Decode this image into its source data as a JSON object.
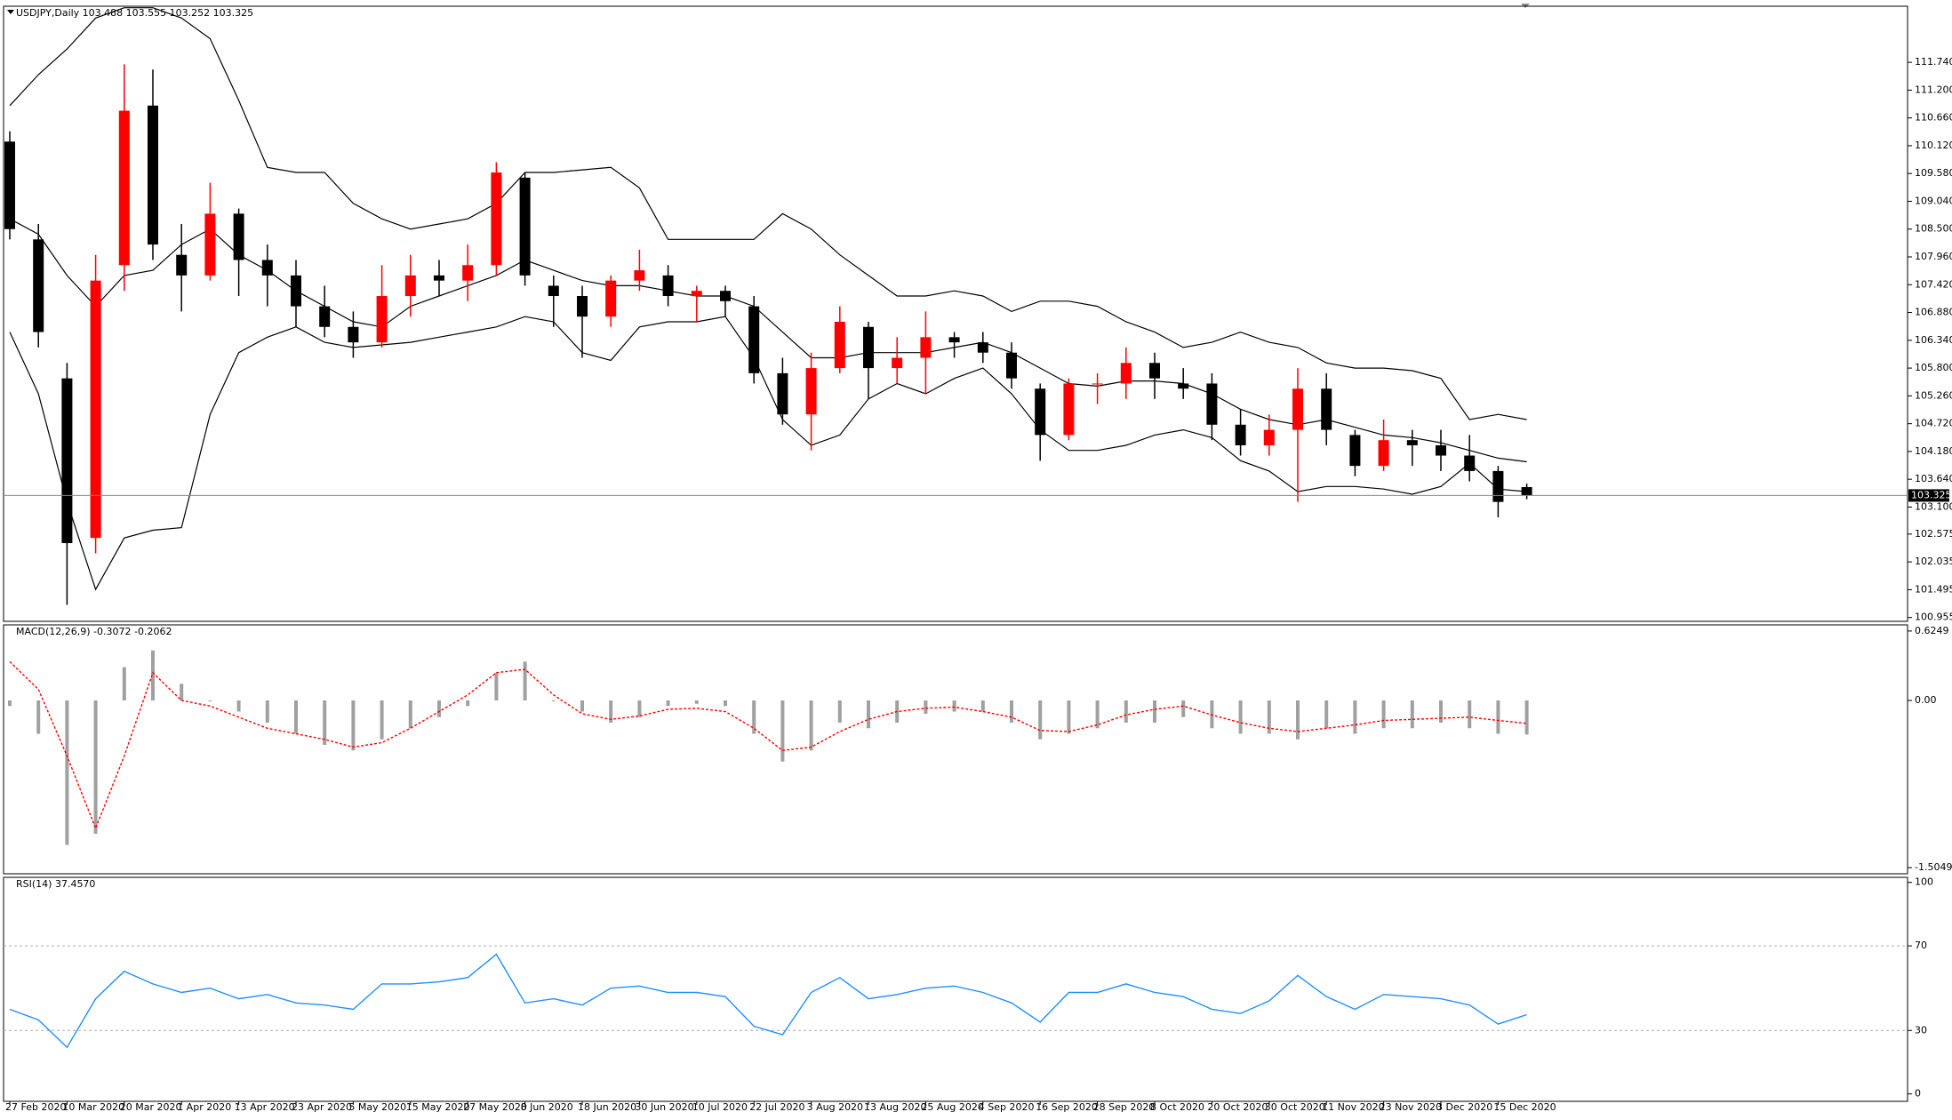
{
  "chart_data": [
    {
      "type": "candlestick",
      "title": "USDJPY,Daily  103.488 103.555 103.252 103.325",
      "up_color": "#ff0000",
      "down_color": "#000000",
      "band_color": "#000000",
      "last_price": 103.325,
      "categories": [
        "27 Feb 2020",
        null,
        "10 Mar 2020",
        null,
        "20 Mar 2020",
        null,
        "1 Apr 2020",
        null,
        "13 Apr 2020",
        null,
        "23 Apr 2020",
        null,
        "5 May 2020",
        null,
        "15 May 2020",
        null,
        "27 May 2020",
        null,
        "8 Jun 2020",
        null,
        "18 Jun 2020",
        null,
        "30 Jun 2020",
        null,
        "10 Jul 2020",
        null,
        "22 Jul 2020",
        null,
        "3 Aug 2020",
        null,
        "13 Aug 2020",
        null,
        "25 Aug 2020",
        null,
        "4 Sep 2020",
        null,
        "16 Sep 2020",
        null,
        "28 Sep 2020",
        null,
        "8 Oct 2020",
        null,
        "20 Oct 2020",
        null,
        "30 Oct 2020",
        null,
        "11 Nov 2020",
        null,
        "23 Nov 2020",
        null,
        "3 Dec 2020",
        null,
        "15 Dec 2020",
        null
      ],
      "open": [
        110.2,
        108.3,
        105.6,
        102.5,
        107.8,
        110.9,
        108.0,
        107.6,
        108.8,
        107.9,
        107.6,
        107.0,
        106.6,
        106.3,
        107.2,
        107.6,
        107.5,
        107.8,
        109.5,
        107.4,
        107.2,
        106.8,
        107.5,
        107.6,
        107.2,
        107.3,
        107.0,
        105.7,
        104.9,
        105.8,
        106.6,
        105.8,
        106.0,
        106.4,
        106.3,
        106.1,
        105.4,
        104.5,
        105.5,
        105.5,
        105.9,
        105.5,
        105.5,
        104.7,
        104.3,
        104.6,
        105.4,
        104.5,
        103.9,
        104.4,
        104.3,
        104.1,
        103.8,
        103.488
      ],
      "high": [
        110.4,
        108.6,
        105.9,
        108.0,
        111.7,
        111.6,
        108.6,
        109.4,
        108.9,
        108.2,
        107.9,
        107.4,
        106.9,
        107.8,
        108.0,
        107.9,
        108.2,
        109.8,
        109.6,
        107.6,
        107.4,
        107.6,
        108.1,
        107.8,
        107.4,
        107.4,
        107.2,
        106.0,
        106.1,
        107.0,
        106.7,
        106.4,
        106.9,
        106.5,
        106.5,
        106.3,
        105.5,
        105.6,
        105.7,
        106.2,
        106.1,
        105.8,
        105.7,
        105.0,
        104.9,
        105.8,
        105.7,
        104.6,
        104.8,
        104.6,
        104.6,
        104.5,
        103.9,
        103.555
      ],
      "low": [
        108.3,
        106.2,
        101.2,
        102.2,
        107.3,
        107.9,
        106.9,
        107.5,
        107.2,
        107.0,
        106.6,
        106.4,
        106.0,
        106.2,
        106.8,
        107.2,
        107.1,
        107.6,
        107.4,
        106.6,
        106.0,
        106.6,
        107.3,
        107.0,
        106.7,
        106.8,
        105.5,
        104.7,
        104.2,
        105.7,
        105.2,
        105.5,
        105.3,
        106.0,
        105.9,
        105.4,
        104.0,
        104.4,
        105.1,
        105.2,
        105.2,
        105.2,
        104.4,
        104.1,
        104.1,
        103.2,
        104.3,
        103.7,
        103.8,
        103.9,
        103.8,
        103.6,
        102.9,
        103.252
      ],
      "close": [
        108.5,
        106.5,
        102.4,
        107.5,
        110.8,
        108.2,
        107.6,
        108.8,
        107.9,
        107.6,
        107.0,
        106.6,
        106.3,
        107.2,
        107.6,
        107.5,
        107.8,
        109.6,
        107.6,
        107.2,
        106.8,
        107.5,
        107.7,
        107.2,
        107.3,
        107.1,
        105.7,
        104.9,
        105.8,
        106.7,
        105.8,
        106.0,
        106.4,
        106.3,
        106.1,
        105.6,
        104.5,
        105.5,
        105.5,
        105.9,
        105.6,
        105.4,
        104.7,
        104.3,
        104.6,
        105.4,
        104.6,
        103.9,
        104.4,
        104.3,
        104.1,
        103.8,
        103.2,
        103.325
      ],
      "bands": {
        "upper": [
          110.9,
          111.5,
          112.0,
          112.6,
          112.8,
          112.8,
          112.6,
          112.2,
          111.0,
          109.7,
          109.6,
          109.6,
          109.0,
          108.7,
          108.5,
          108.6,
          108.7,
          109.0,
          109.6,
          109.6,
          109.65,
          109.7,
          109.3,
          108.3,
          108.3,
          108.3,
          108.3,
          108.8,
          108.5,
          108.0,
          107.6,
          107.2,
          107.2,
          107.3,
          107.2,
          106.9,
          107.1,
          107.1,
          107.0,
          106.7,
          106.5,
          106.2,
          106.3,
          106.5,
          106.3,
          106.2,
          105.9,
          105.8,
          105.8,
          105.75,
          105.6,
          104.8,
          104.9,
          104.8
        ],
        "middle": [
          108.7,
          108.4,
          107.6,
          107.0,
          107.6,
          107.7,
          108.2,
          108.5,
          108.0,
          107.7,
          107.3,
          107.0,
          106.7,
          106.6,
          107.0,
          107.2,
          107.4,
          107.6,
          107.9,
          107.7,
          107.5,
          107.4,
          107.4,
          107.3,
          107.2,
          107.2,
          107.0,
          106.5,
          106.0,
          106.0,
          106.1,
          106.1,
          106.1,
          106.2,
          106.3,
          106.1,
          105.8,
          105.5,
          105.45,
          105.55,
          105.55,
          105.5,
          105.3,
          105.0,
          104.8,
          104.7,
          104.8,
          104.65,
          104.5,
          104.45,
          104.35,
          104.2,
          104.05,
          103.98
        ],
        "lower": [
          106.5,
          105.3,
          103.2,
          101.5,
          102.5,
          102.65,
          102.7,
          104.9,
          106.1,
          106.4,
          106.6,
          106.3,
          106.2,
          106.25,
          106.3,
          106.4,
          106.5,
          106.6,
          106.8,
          106.7,
          106.1,
          105.95,
          106.6,
          106.7,
          106.7,
          106.8,
          106.0,
          104.8,
          104.3,
          104.5,
          105.2,
          105.5,
          105.3,
          105.6,
          105.8,
          105.3,
          104.6,
          104.2,
          104.2,
          104.3,
          104.5,
          104.6,
          104.45,
          104.0,
          103.8,
          103.4,
          103.5,
          103.5,
          103.45,
          103.35,
          103.5,
          103.95,
          103.45,
          103.4
        ]
      },
      "ylim": [
        100.88,
        112.83
      ],
      "yticks": [
        101.495,
        102.035,
        102.575,
        {
          "value": 103.1,
          "label": "103.100"
        },
        {
          "value": 103.64,
          "label": "103.640"
        },
        {
          "value": 104.18,
          "label": "104.180"
        },
        {
          "value": 104.72,
          "label": "104.720"
        },
        {
          "value": 105.26,
          "label": "105.260"
        },
        {
          "value": 105.8,
          "label": "105.800"
        },
        {
          "value": 106.34,
          "label": "106.340"
        },
        {
          "value": 106.88,
          "label": "106.880"
        },
        {
          "value": 107.42,
          "label": "107.420"
        },
        {
          "value": 107.96,
          "label": "107.960"
        },
        {
          "value": 108.5,
          "label": "108.500"
        },
        {
          "value": 109.04,
          "label": "109.040"
        },
        {
          "value": 109.58,
          "label": "109.580"
        },
        {
          "value": 110.12,
          "label": "110.120"
        },
        {
          "value": 110.66,
          "label": "110.660"
        },
        {
          "value": 111.2,
          "label": "111.200"
        },
        {
          "value": 111.74,
          "label": "111.740"
        },
        100.955
      ]
    },
    {
      "type": "macd",
      "title": "MACD(12,26,9) -0.3072 -0.2062",
      "histogram_color": "#a0a0a0",
      "signal_color": "#ff0000",
      "histogram": [
        -0.05,
        -0.3,
        -1.3,
        -1.2,
        0.3,
        0.45,
        0.15,
        0.0,
        -0.1,
        -0.2,
        -0.3,
        -0.4,
        -0.45,
        -0.35,
        -0.25,
        -0.15,
        -0.05,
        0.25,
        0.35,
        0.0,
        -0.1,
        -0.2,
        -0.15,
        -0.05,
        -0.03,
        -0.05,
        -0.3,
        -0.55,
        -0.45,
        -0.2,
        -0.25,
        -0.2,
        -0.12,
        -0.1,
        -0.1,
        -0.2,
        -0.35,
        -0.3,
        -0.25,
        -0.2,
        -0.2,
        -0.15,
        -0.25,
        -0.3,
        -0.3,
        -0.35,
        -0.25,
        -0.3,
        -0.25,
        -0.25,
        -0.2,
        -0.25,
        -0.3,
        -0.3072
      ],
      "signal": [
        0.35,
        0.1,
        -0.5,
        -1.15,
        -0.5,
        0.25,
        0.0,
        -0.05,
        -0.15,
        -0.25,
        -0.3,
        -0.35,
        -0.42,
        -0.38,
        -0.25,
        -0.1,
        0.05,
        0.25,
        0.28,
        0.05,
        -0.12,
        -0.17,
        -0.14,
        -0.08,
        -0.07,
        -0.1,
        -0.25,
        -0.45,
        -0.42,
        -0.28,
        -0.17,
        -0.1,
        -0.07,
        -0.06,
        -0.1,
        -0.15,
        -0.27,
        -0.28,
        -0.22,
        -0.13,
        -0.08,
        -0.05,
        -0.13,
        -0.2,
        -0.25,
        -0.28,
        -0.25,
        -0.22,
        -0.18,
        -0.17,
        -0.16,
        -0.15,
        -0.18,
        -0.2062
      ],
      "ylim": [
        -1.56,
        0.68
      ],
      "yticks": [
        0.6249,
        {
          "value": 0,
          "label": "0.00"
        },
        -1.5049
      ]
    },
    {
      "type": "line",
      "title": "RSI(14) 37.4570",
      "color": "#1e90ff",
      "values": [
        40,
        35,
        22,
        45,
        58,
        52,
        48,
        50,
        45,
        47,
        43,
        42,
        40,
        52,
        52,
        53,
        55,
        66,
        43,
        45,
        42,
        50,
        51,
        48,
        48,
        46,
        32,
        28,
        48,
        55,
        45,
        47,
        50,
        51,
        48,
        43,
        34,
        48,
        48,
        52,
        48,
        46,
        40,
        38,
        44,
        56,
        46,
        40,
        47,
        46,
        45,
        42,
        33,
        37.457
      ],
      "ylim": [
        -3.5,
        102.4
      ],
      "yticks": [
        0,
        30,
        70,
        100
      ]
    }
  ]
}
